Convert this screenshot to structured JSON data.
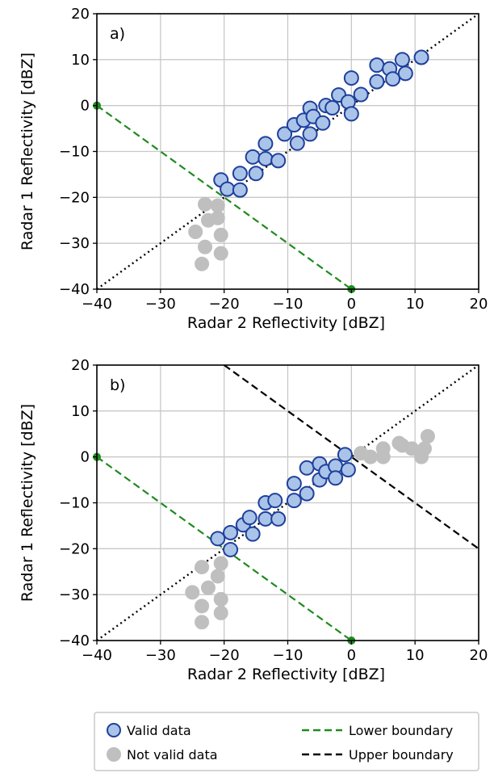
{
  "chart_data": [
    {
      "type": "scatter",
      "panel_label": "a)",
      "xlabel": "Radar 2 Reflectivity [dBZ]",
      "ylabel": "Radar 1 Reflectivity [dBZ]",
      "xlim": [
        -40,
        20
      ],
      "ylim": [
        -40,
        20
      ],
      "xticks": [
        -40,
        -30,
        -20,
        -10,
        0,
        10,
        20
      ],
      "yticks": [
        -40,
        -30,
        -20,
        -10,
        0,
        10,
        20
      ],
      "grid": true,
      "series": [
        {
          "name": "Valid data",
          "color": "#a9c4e8",
          "edge": "#1f3f9c",
          "points": [
            [
              -20.5,
              -16.2
            ],
            [
              -19.5,
              -18.2
            ],
            [
              -17.5,
              -14.8
            ],
            [
              -17.5,
              -18.4
            ],
            [
              -15.5,
              -11.2
            ],
            [
              -15,
              -14.8
            ],
            [
              -13.5,
              -8.3
            ],
            [
              -13.5,
              -11.6
            ],
            [
              -11.5,
              -12
            ],
            [
              -10.5,
              -6.2
            ],
            [
              -9,
              -4.2
            ],
            [
              -8.5,
              -8.2
            ],
            [
              -7.5,
              -3.2
            ],
            [
              -6.5,
              -0.6
            ],
            [
              -6.5,
              -6.2
            ],
            [
              -6,
              -2.4
            ],
            [
              -4.5,
              -3.8
            ],
            [
              -4,
              0
            ],
            [
              -3,
              -0.5
            ],
            [
              -2,
              2.3
            ],
            [
              -0.5,
              0.8
            ],
            [
              0,
              6
            ],
            [
              0,
              -1.8
            ],
            [
              1.5,
              2.4
            ],
            [
              4,
              8.8
            ],
            [
              4,
              5.2
            ],
            [
              6,
              8
            ],
            [
              6.5,
              5.8
            ],
            [
              8,
              10
            ],
            [
              8.5,
              7
            ],
            [
              11,
              10.5
            ]
          ]
        },
        {
          "name": "Not valid data",
          "color": "#bfbfbf",
          "points": [
            [
              -24.5,
              -27.5
            ],
            [
              -23,
              -21.5
            ],
            [
              -23.5,
              -34.5
            ],
            [
              -23,
              -30.8
            ],
            [
              -22.5,
              -25
            ],
            [
              -21,
              -21.8
            ],
            [
              -21,
              -24.5
            ],
            [
              -20.5,
              -28.2
            ],
            [
              -20.5,
              -32.2
            ]
          ]
        },
        {
          "name": "Lower boundary",
          "color": "#1f8a1f",
          "dash": true,
          "line": [
            [
              -40,
              0
            ],
            [
              0,
              -40
            ]
          ]
        },
        {
          "name": "1:1 line",
          "color": "#000000",
          "dotted": true,
          "line": [
            [
              -40,
              -40
            ],
            [
              20,
              20
            ]
          ]
        }
      ]
    },
    {
      "type": "scatter",
      "panel_label": "b)",
      "xlabel": "Radar 2 Reflectivity [dBZ]",
      "ylabel": "Radar 1 Reflectivity [dBZ]",
      "xlim": [
        -40,
        20
      ],
      "ylim": [
        -40,
        20
      ],
      "xticks": [
        -40,
        -30,
        -20,
        -10,
        0,
        10,
        20
      ],
      "yticks": [
        -40,
        -30,
        -20,
        -10,
        0,
        10,
        20
      ],
      "grid": true,
      "series": [
        {
          "name": "Valid data",
          "color": "#a9c4e8",
          "edge": "#1f3f9c",
          "points": [
            [
              -21,
              -17.8
            ],
            [
              -19,
              -20.2
            ],
            [
              -19,
              -16.5
            ],
            [
              -17,
              -14.8
            ],
            [
              -16,
              -13.2
            ],
            [
              -15.5,
              -16.8
            ],
            [
              -13.5,
              -10
            ],
            [
              -13.5,
              -13.5
            ],
            [
              -12,
              -9.5
            ],
            [
              -11.5,
              -13.5
            ],
            [
              -9,
              -5.8
            ],
            [
              -9,
              -9.5
            ],
            [
              -7,
              -2.4
            ],
            [
              -7,
              -8
            ],
            [
              -5,
              -1.5
            ],
            [
              -5,
              -5
            ],
            [
              -4,
              -3.2
            ],
            [
              -2.5,
              -2
            ],
            [
              -2.5,
              -4.6
            ],
            [
              -1,
              0.5
            ],
            [
              -0.5,
              -2.8
            ]
          ]
        },
        {
          "name": "Not valid data",
          "color": "#bfbfbf",
          "points": [
            [
              -25,
              -29.5
            ],
            [
              -23.5,
              -24
            ],
            [
              -23.5,
              -32.5
            ],
            [
              -23.5,
              -36
            ],
            [
              -22.5,
              -28.5
            ],
            [
              -21,
              -26
            ],
            [
              -20.5,
              -23.2
            ],
            [
              -20.5,
              -31
            ],
            [
              -20.5,
              -34
            ],
            [
              1.5,
              0.8
            ],
            [
              3,
              0
            ],
            [
              5,
              1.8
            ],
            [
              5,
              0
            ],
            [
              7.5,
              3
            ],
            [
              8,
              2.5
            ],
            [
              9.5,
              1.8
            ],
            [
              11,
              0
            ],
            [
              11.5,
              1.8
            ],
            [
              12,
              4.5
            ]
          ]
        },
        {
          "name": "Lower boundary",
          "color": "#1f8a1f",
          "dash": true,
          "line": [
            [
              -40,
              0
            ],
            [
              0,
              -40
            ]
          ]
        },
        {
          "name": "Upper boundary",
          "color": "#000000",
          "dash": true,
          "line": [
            [
              -20,
              20
            ],
            [
              20,
              -20
            ]
          ]
        },
        {
          "name": "1:1 line",
          "color": "#000000",
          "dotted": true,
          "line": [
            [
              -40,
              -40
            ],
            [
              20,
              20
            ]
          ]
        }
      ]
    }
  ],
  "legend": {
    "items": [
      {
        "label": "Valid data",
        "kind": "marker",
        "color": "#a9c4e8",
        "edge": "#1f3f9c"
      },
      {
        "label": "Lower boundary",
        "kind": "line",
        "color": "#1f8a1f"
      },
      {
        "label": "Not valid data",
        "kind": "marker",
        "color": "#bfbfbf",
        "edge": "#bfbfbf"
      },
      {
        "label": "Upper boundary",
        "kind": "line",
        "color": "#000000"
      }
    ]
  }
}
